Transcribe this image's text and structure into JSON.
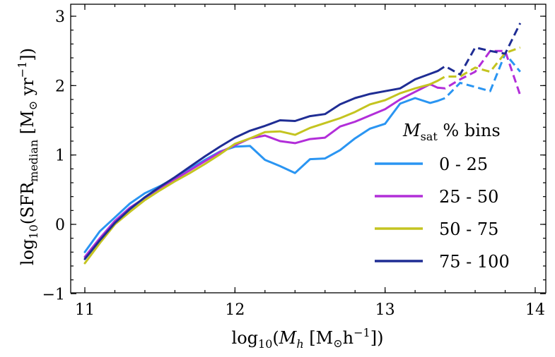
{
  "chart_data": {
    "type": "line",
    "title": "",
    "xlabel": "log₁₀(Mₕ [M⊙h⁻¹])",
    "ylabel": "log₁₀(SFR_median [M⊙ yr⁻¹])",
    "xlabel_parts": {
      "pre": "log",
      "sub1": "10",
      "mid": "(",
      "var": "M",
      "varsub": "h",
      "post": " [M",
      "sun": "⊙",
      "unit": "h",
      "sup": "−1",
      "close": "])"
    },
    "ylabel_parts": {
      "pre": "log",
      "sub1": "10",
      "mid": "(SFR",
      "sub2": "median",
      "post": " [M",
      "sun": "⊙",
      "unit": " yr",
      "sup": "−1",
      "close": "])"
    },
    "xlim": [
      10.95,
      14.1
    ],
    "ylim": [
      -1,
      3.05
    ],
    "xticks": [
      11,
      12,
      13,
      14
    ],
    "yticks": [
      -1,
      0,
      1,
      2,
      3
    ],
    "xtick_labels": [
      "11",
      "12",
      "13",
      "14"
    ],
    "ytick_labels": [
      "−1",
      "0",
      "1",
      "2",
      "3"
    ],
    "grid": false,
    "legend": {
      "title_var": "M",
      "title_sub": "sat",
      "title_rest": " % bins",
      "placement": "center-right"
    },
    "series": [
      {
        "name": "0 - 25",
        "color": "#2a95f2",
        "solid": [
          [
            11.0,
            -0.4
          ],
          [
            11.1,
            -0.1
          ],
          [
            11.2,
            0.1
          ],
          [
            11.3,
            0.3
          ],
          [
            11.4,
            0.45
          ],
          [
            11.5,
            0.55
          ],
          [
            11.6,
            0.67
          ],
          [
            11.7,
            0.8
          ],
          [
            11.8,
            0.93
          ],
          [
            11.9,
            1.05
          ],
          [
            12.0,
            1.12
          ],
          [
            12.1,
            1.13
          ],
          [
            12.2,
            0.93
          ],
          [
            12.3,
            0.84
          ],
          [
            12.4,
            0.74
          ],
          [
            12.5,
            0.94
          ],
          [
            12.6,
            0.95
          ],
          [
            12.7,
            1.07
          ],
          [
            12.8,
            1.24
          ],
          [
            12.9,
            1.38
          ],
          [
            13.0,
            1.45
          ],
          [
            13.1,
            1.74
          ],
          [
            13.2,
            1.82
          ],
          [
            13.3,
            1.75
          ],
          [
            13.35,
            1.78
          ]
        ],
        "dashed": [
          [
            13.35,
            1.78
          ],
          [
            13.4,
            1.82
          ],
          [
            13.5,
            2.04
          ],
          [
            13.6,
            1.98
          ],
          [
            13.7,
            1.92
          ],
          [
            13.8,
            2.46
          ],
          [
            13.9,
            2.2
          ]
        ]
      },
      {
        "name": "25 - 50",
        "color": "#b22ed9",
        "solid": [
          [
            11.0,
            -0.47
          ],
          [
            11.1,
            -0.2
          ],
          [
            11.2,
            0.05
          ],
          [
            11.3,
            0.24
          ],
          [
            11.4,
            0.38
          ],
          [
            11.5,
            0.52
          ],
          [
            11.6,
            0.65
          ],
          [
            11.7,
            0.78
          ],
          [
            11.8,
            0.91
          ],
          [
            11.9,
            1.04
          ],
          [
            12.0,
            1.14
          ],
          [
            12.1,
            1.24
          ],
          [
            12.2,
            1.28
          ],
          [
            12.3,
            1.2
          ],
          [
            12.4,
            1.17
          ],
          [
            12.5,
            1.23
          ],
          [
            12.6,
            1.25
          ],
          [
            12.7,
            1.41
          ],
          [
            12.8,
            1.48
          ],
          [
            12.9,
            1.57
          ],
          [
            13.0,
            1.66
          ],
          [
            13.1,
            1.8
          ],
          [
            13.2,
            1.91
          ],
          [
            13.3,
            2.02
          ],
          [
            13.35,
            1.97
          ]
        ],
        "dashed": [
          [
            13.35,
            1.97
          ],
          [
            13.4,
            1.96
          ],
          [
            13.5,
            2.09
          ],
          [
            13.6,
            2.2
          ],
          [
            13.7,
            2.5
          ],
          [
            13.8,
            2.5
          ],
          [
            13.9,
            1.86
          ]
        ]
      },
      {
        "name": "50 - 75",
        "color": "#c4c420",
        "solid": [
          [
            11.0,
            -0.56
          ],
          [
            11.1,
            -0.27
          ],
          [
            11.2,
            0.0
          ],
          [
            11.3,
            0.18
          ],
          [
            11.4,
            0.35
          ],
          [
            11.5,
            0.49
          ],
          [
            11.6,
            0.62
          ],
          [
            11.7,
            0.74
          ],
          [
            11.8,
            0.87
          ],
          [
            11.9,
            1.01
          ],
          [
            12.0,
            1.16
          ],
          [
            12.1,
            1.24
          ],
          [
            12.2,
            1.33
          ],
          [
            12.3,
            1.34
          ],
          [
            12.4,
            1.29
          ],
          [
            12.5,
            1.39
          ],
          [
            12.6,
            1.46
          ],
          [
            12.7,
            1.53
          ],
          [
            12.8,
            1.62
          ],
          [
            12.9,
            1.73
          ],
          [
            13.0,
            1.79
          ],
          [
            13.1,
            1.89
          ],
          [
            13.2,
            1.96
          ],
          [
            13.3,
            2.02
          ],
          [
            13.35,
            2.07
          ]
        ],
        "dashed": [
          [
            13.35,
            2.07
          ],
          [
            13.4,
            2.13
          ],
          [
            13.5,
            2.13
          ],
          [
            13.6,
            2.26
          ],
          [
            13.7,
            2.2
          ],
          [
            13.8,
            2.47
          ],
          [
            13.9,
            2.55
          ]
        ]
      },
      {
        "name": "75 - 100",
        "color": "#1f2d94",
        "solid": [
          [
            11.0,
            -0.5
          ],
          [
            11.1,
            -0.23
          ],
          [
            11.2,
            0.02
          ],
          [
            11.3,
            0.22
          ],
          [
            11.4,
            0.39
          ],
          [
            11.5,
            0.54
          ],
          [
            11.6,
            0.68
          ],
          [
            11.7,
            0.83
          ],
          [
            11.8,
            0.98
          ],
          [
            11.9,
            1.12
          ],
          [
            12.0,
            1.25
          ],
          [
            12.1,
            1.35
          ],
          [
            12.2,
            1.42
          ],
          [
            12.3,
            1.5
          ],
          [
            12.4,
            1.49
          ],
          [
            12.5,
            1.56
          ],
          [
            12.6,
            1.59
          ],
          [
            12.7,
            1.73
          ],
          [
            12.8,
            1.82
          ],
          [
            12.9,
            1.88
          ],
          [
            13.0,
            1.92
          ],
          [
            13.1,
            1.96
          ],
          [
            13.2,
            2.09
          ],
          [
            13.3,
            2.17
          ],
          [
            13.35,
            2.21
          ]
        ],
        "dashed": [
          [
            13.35,
            2.21
          ],
          [
            13.4,
            2.28
          ],
          [
            13.5,
            2.16
          ],
          [
            13.6,
            2.55
          ],
          [
            13.7,
            2.5
          ],
          [
            13.8,
            2.46
          ],
          [
            13.9,
            2.9
          ]
        ]
      }
    ]
  }
}
